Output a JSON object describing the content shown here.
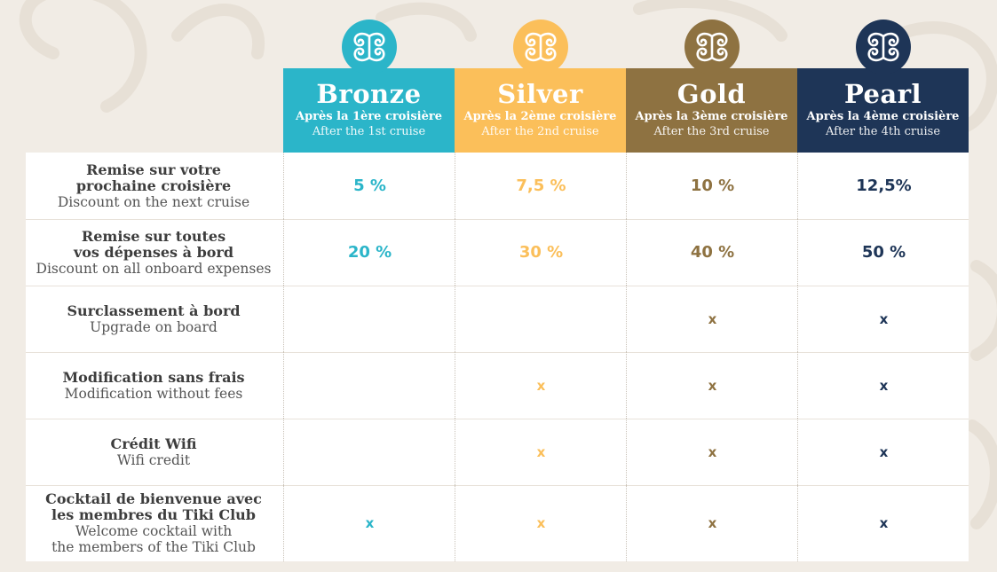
{
  "tiers": [
    {
      "name": "Bronze",
      "fr": "Après la 1ère croisière",
      "en": "After the 1st cruise",
      "color": "#2bb5c9",
      "icon": "tiki-swirl-icon"
    },
    {
      "name": "Silver",
      "fr": "Après la 2ème croisière",
      "en": "After the 2nd cruise",
      "color": "#fbbf5a",
      "icon": "tiki-swirl-icon"
    },
    {
      "name": "Gold",
      "fr": "Après la 3ème croisière",
      "en": "After the 3rd cruise",
      "color": "#8e7241",
      "icon": "tiki-swirl-icon"
    },
    {
      "name": "Pearl",
      "fr": "Après la 4ème croisière",
      "en": "After the 4th cruise",
      "color": "#1e3557",
      "icon": "tiki-swirl-icon"
    }
  ],
  "rows": [
    {
      "fr1": "Remise sur votre",
      "fr2": "prochaine croisière",
      "en1": "Discount on the next cruise",
      "en2": "",
      "cells": [
        "5 %",
        "7,5 %",
        "10 %",
        "12,5%"
      ]
    },
    {
      "fr1": "Remise sur toutes",
      "fr2": "vos dépenses à bord",
      "en1": "Discount on all onboard expenses",
      "en2": "",
      "cells": [
        "20 %",
        "30 %",
        "40 %",
        "50 %"
      ]
    },
    {
      "fr1": "Surclassement à bord",
      "fr2": "",
      "en1": "Upgrade on board",
      "en2": "",
      "cells": [
        "",
        "",
        "x",
        "x"
      ]
    },
    {
      "fr1": "Modification sans frais",
      "fr2": "",
      "en1": "Modification without fees",
      "en2": "",
      "cells": [
        "",
        "x",
        "x",
        "x"
      ]
    },
    {
      "fr1": "Crédit Wifi",
      "fr2": "",
      "en1": "Wifi credit",
      "en2": "",
      "cells": [
        "",
        "x",
        "x",
        "x"
      ]
    },
    {
      "fr1": "Cocktail de bienvenue avec",
      "fr2": "les membres du Tiki Club",
      "en1": "Welcome cocktail with",
      "en2": "the members of the Tiki Club",
      "cells": [
        "x",
        "x",
        "x",
        "x"
      ]
    }
  ]
}
